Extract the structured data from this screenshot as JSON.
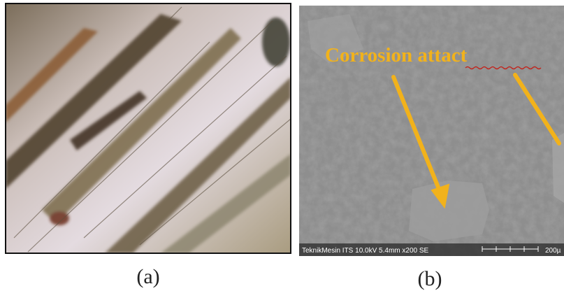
{
  "panels": [
    {
      "label": "(a)"
    },
    {
      "label": "(b)",
      "annotation": "Corrosion attact",
      "info_bar": "TeknikMesin ITS 10.0kV 5.4mm x200 SE",
      "scale_bar": "200µ"
    }
  ]
}
